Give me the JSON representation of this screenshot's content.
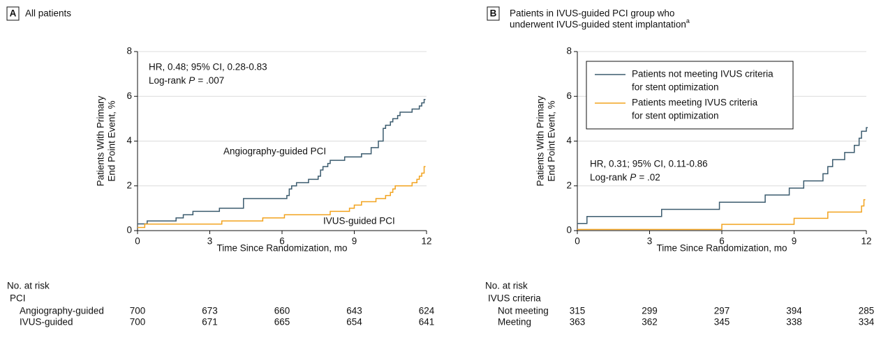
{
  "chart_data": [
    {
      "type": "step",
      "panel": "A",
      "title": [
        "All patients"
      ],
      "ylabel": [
        "Patients With Primary",
        "End Point Event, %"
      ],
      "xlabel": "Time Since Randomization, mo",
      "xlim": [
        0,
        12
      ],
      "xticks": [
        0,
        3,
        6,
        9,
        12
      ],
      "ylim": [
        0,
        8
      ],
      "yticks": [
        0,
        2,
        4,
        6,
        8
      ],
      "grid": true,
      "stats": {
        "hr": "HR, 0.48; 95% CI, 0.28-0.83",
        "test": "Log-rank",
        "p_symbol": "P",
        "p_value": "= .007"
      },
      "legend": false,
      "series": [
        {
          "name": [
            "Angiography-guided PCI"
          ],
          "color": "#3b5b6e",
          "x": [
            0,
            0.4,
            1.6,
            1.9,
            2.3,
            3.4,
            4.4,
            6.2,
            6.3,
            6.4,
            6.6,
            7.1,
            7.5,
            7.6,
            7.7,
            7.9,
            8.0,
            8.6,
            9.3,
            9.7,
            10.0,
            10.2,
            10.3,
            10.5,
            10.6,
            10.8,
            10.9,
            11.4,
            11.7,
            11.8,
            11.9
          ],
          "values": [
            0.3,
            0.43,
            0.57,
            0.71,
            0.86,
            1.0,
            1.43,
            1.57,
            1.86,
            2.0,
            2.14,
            2.29,
            2.43,
            2.71,
            2.86,
            3.0,
            3.14,
            3.29,
            3.43,
            3.71,
            4.0,
            4.57,
            4.71,
            4.86,
            5.0,
            5.14,
            5.29,
            5.43,
            5.57,
            5.71,
            5.86
          ]
        },
        {
          "name": [
            "IVUS-guided PCI"
          ],
          "color": "#f2a31f",
          "x": [
            0,
            0.3,
            3.5,
            5.2,
            6.1,
            8.0,
            8.8,
            9.0,
            9.3,
            9.9,
            10.3,
            10.5,
            10.6,
            10.7,
            11.4,
            11.6,
            11.7,
            11.8,
            11.9
          ],
          "values": [
            0.14,
            0.29,
            0.43,
            0.57,
            0.71,
            0.86,
            1.0,
            1.14,
            1.29,
            1.43,
            1.57,
            1.71,
            1.86,
            2.0,
            2.14,
            2.29,
            2.43,
            2.57,
            2.86
          ]
        }
      ],
      "risk_table": {
        "title": "No. at risk",
        "group": "PCI",
        "rows": [
          {
            "label": "Angiography-guided",
            "values": [
              700,
              673,
              660,
              643,
              624
            ]
          },
          {
            "label": "IVUS-guided",
            "values": [
              700,
              671,
              665,
              654,
              641
            ]
          }
        ]
      }
    },
    {
      "type": "step",
      "panel": "B",
      "title": [
        "Patients in IVUS-guided PCI group who",
        "underwent IVUS-guided stent implantation"
      ],
      "title_note": "a",
      "ylabel": [
        "Patients With Primary",
        "End Point Event, %"
      ],
      "xlabel": "Time Since Randomization, mo",
      "xlim": [
        0,
        12
      ],
      "xticks": [
        0,
        3,
        6,
        9,
        12
      ],
      "ylim": [
        0,
        8
      ],
      "yticks": [
        0,
        2,
        4,
        6,
        8
      ],
      "grid": true,
      "stats": {
        "hr": "HR, 0.31; 95% CI, 0.11-0.86",
        "test": "Log-rank",
        "p_symbol": "P",
        "p_value": "= .02"
      },
      "legend": true,
      "series": [
        {
          "name": [
            "Patients not meeting IVUS criteria",
            "for stent optimization"
          ],
          "color": "#3b5b6e",
          "x": [
            0,
            0.4,
            3.5,
            5.9,
            7.8,
            8.8,
            9.4,
            10.2,
            10.4,
            10.6,
            11.1,
            11.5,
            11.7,
            11.8,
            12.0
          ],
          "values": [
            0.32,
            0.63,
            0.95,
            1.27,
            1.59,
            1.9,
            2.22,
            2.54,
            2.86,
            3.17,
            3.49,
            3.81,
            4.13,
            4.44,
            4.6
          ]
        },
        {
          "name": [
            "Patients meeting IVUS criteria",
            "for stent optimization"
          ],
          "color": "#f2a31f",
          "x": [
            0,
            6.0,
            9.0,
            10.4,
            11.8,
            11.9
          ],
          "values": [
            0.05,
            0.28,
            0.55,
            0.83,
            1.1,
            1.38
          ]
        }
      ],
      "risk_table": {
        "title": "No. at risk",
        "group": "IVUS criteria",
        "rows": [
          {
            "label": "Not meeting",
            "values": [
              315,
              299,
              297,
              394,
              285
            ]
          },
          {
            "label": "Meeting",
            "values": [
              363,
              362,
              345,
              338,
              334
            ]
          }
        ]
      }
    }
  ]
}
